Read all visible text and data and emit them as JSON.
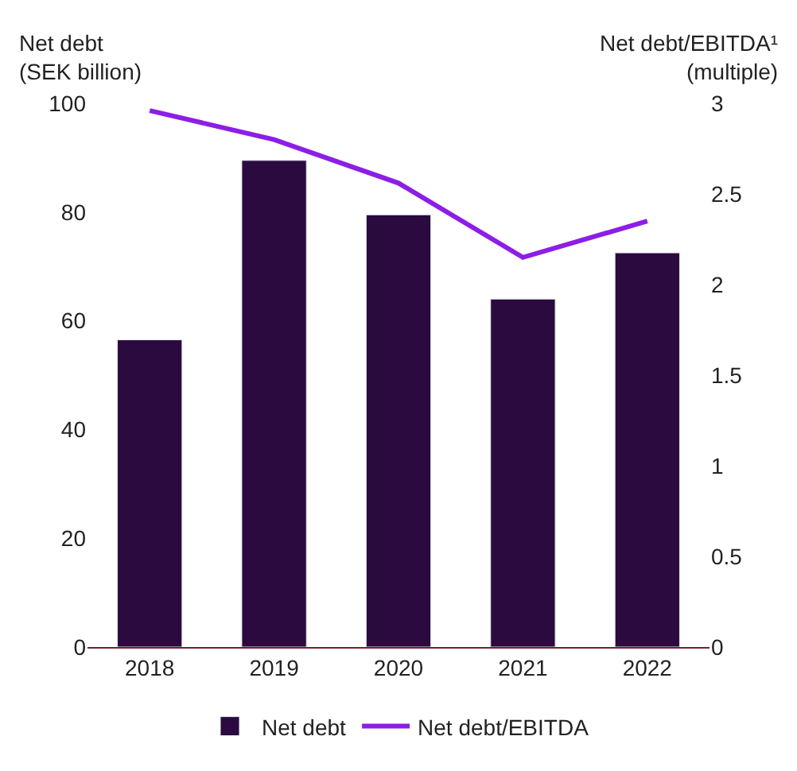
{
  "chart_data": {
    "type": "bar",
    "ylabel": "Net debt\n(SEK billion)",
    "y2label": "Net debt/EBITDA¹\n(multiple)",
    "categories": [
      "2018",
      "2019",
      "2020",
      "2021",
      "2022"
    ],
    "series": [
      {
        "name": "Net debt",
        "color": "#2a0a3f",
        "values": [
          56.5,
          89.5,
          79.5,
          64,
          72.5
        ]
      },
      {
        "name": "Net debt/EBITDA",
        "type": "line",
        "axis": "y2",
        "color": "#8c1ee6",
        "values": [
          2.96,
          2.8,
          2.56,
          2.15,
          2.35
        ]
      }
    ],
    "ylim": [
      0,
      100
    ],
    "yticks": [
      0,
      20,
      40,
      60,
      80,
      100
    ],
    "y2lim": [
      0,
      3
    ],
    "y2ticks": [
      0,
      0.5,
      1,
      1.5,
      2,
      2.5,
      3
    ],
    "legend": "bottom",
    "marker": "none",
    "line_style": "solid"
  }
}
